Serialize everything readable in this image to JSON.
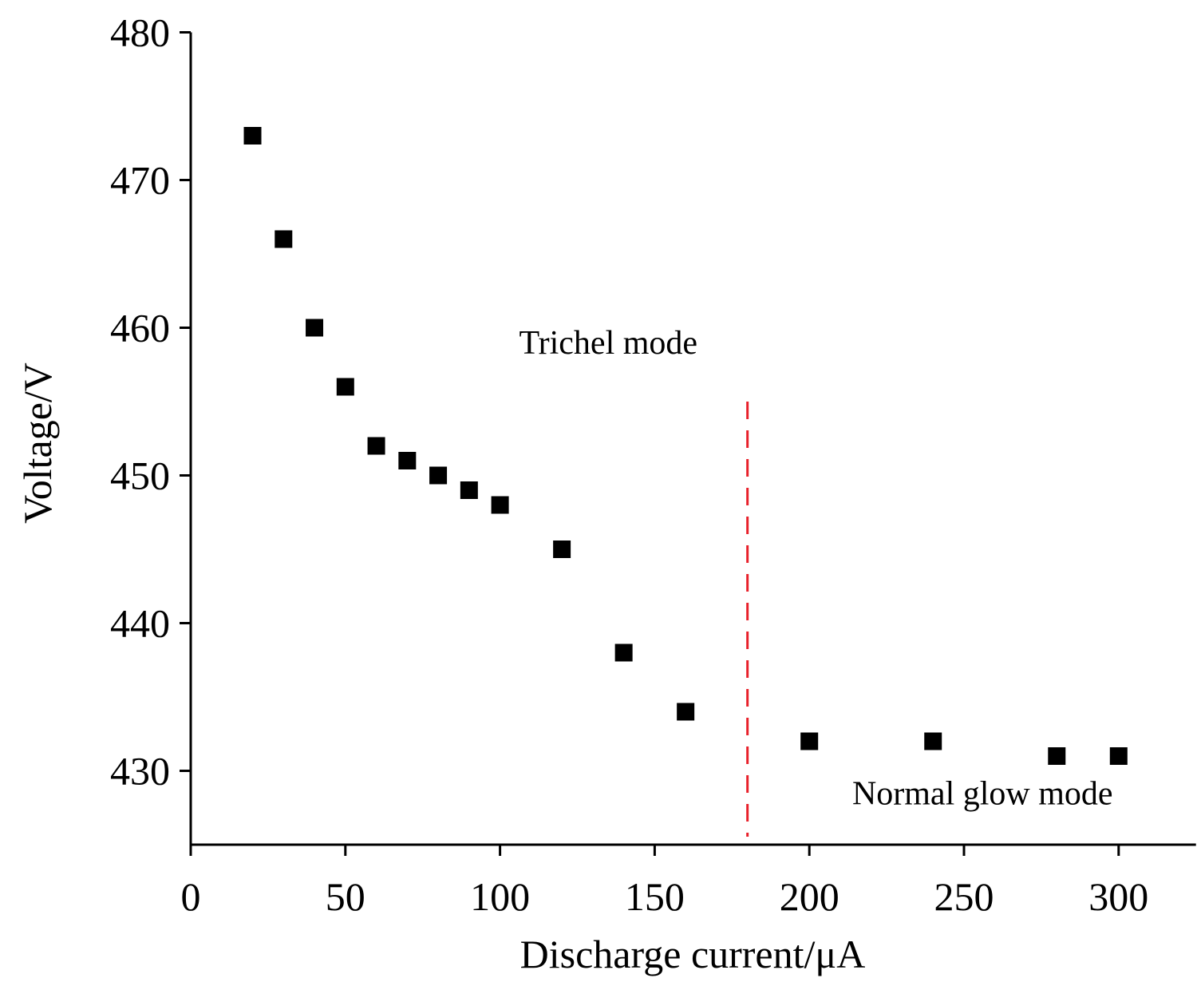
{
  "chart_data": {
    "type": "scatter",
    "xlabel": "Discharge current/μA",
    "ylabel": "Voltage/V",
    "xlim": [
      0,
      325
    ],
    "ylim": [
      425,
      480
    ],
    "xticks": [
      0,
      50,
      100,
      150,
      200,
      250,
      300
    ],
    "yticks": [
      430,
      440,
      450,
      460,
      470,
      480
    ],
    "grid": false,
    "legend": "none",
    "marker": "square",
    "marker_color": "#000000",
    "series": [
      {
        "x": [
          20,
          30,
          40,
          50,
          60,
          70,
          80,
          90,
          100,
          120,
          140,
          160,
          200,
          240,
          280,
          300
        ],
        "y": [
          473,
          466,
          460,
          456,
          452,
          451,
          450,
          449,
          448,
          445,
          438,
          434,
          432,
          432,
          431,
          431
        ]
      }
    ],
    "divider": {
      "x": 180,
      "y_from": 425,
      "y_to": 455,
      "style": "dashed",
      "color": "#e8202a"
    },
    "annotations": [
      {
        "text": "Trichel mode",
        "x": 135,
        "y": 459
      },
      {
        "text": "Normal glow mode",
        "x": 256,
        "y": 428.5
      }
    ]
  }
}
